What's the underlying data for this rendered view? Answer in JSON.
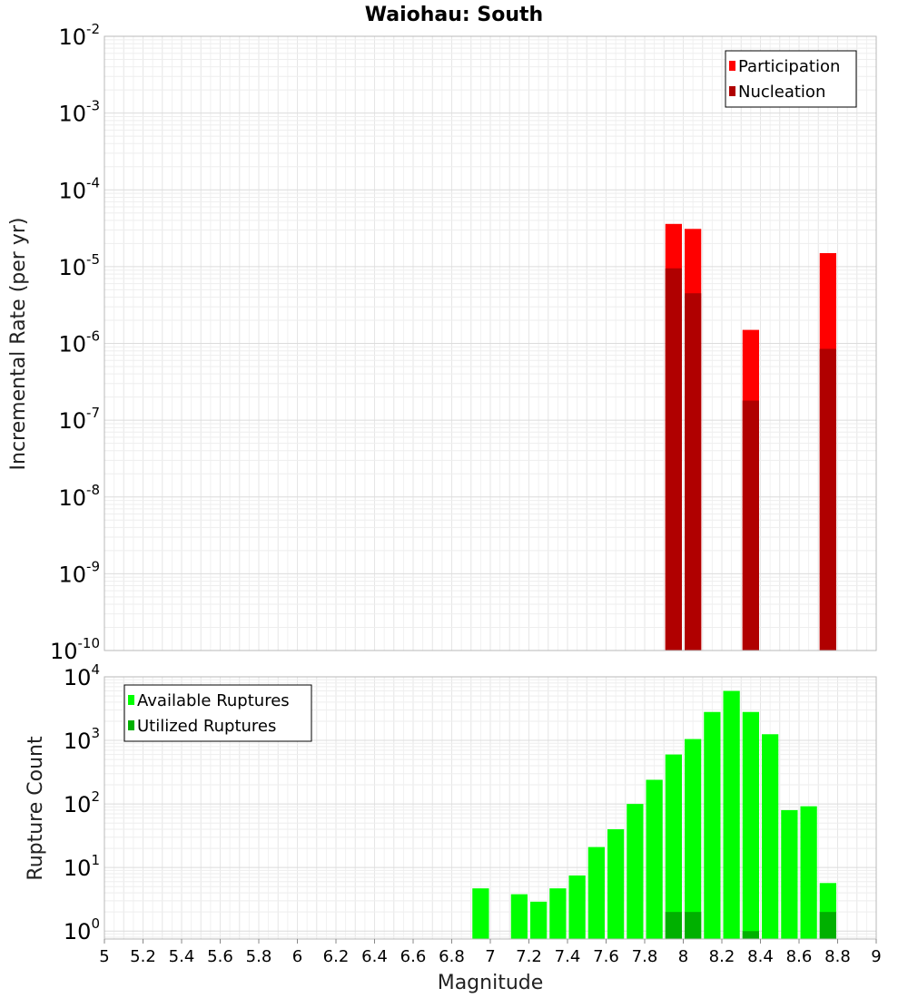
{
  "chart_data": [
    {
      "type": "bar",
      "title": "Waiohau: South",
      "xlabel": "",
      "ylabel": "Incremental Rate (per yr)",
      "xlim": [
        5,
        9
      ],
      "ylim": [
        1e-10,
        0.01
      ],
      "yscale": "log",
      "ytick_exponents": [
        "-10",
        "-9",
        "-8",
        "-7",
        "-6",
        "-5",
        "-4",
        "-3",
        "-2"
      ],
      "ytick_base": "10",
      "grid": true,
      "legend": {
        "position": "top-right"
      },
      "bin_width": 0.1,
      "x": [
        7.95,
        8.05,
        8.35,
        8.75
      ],
      "series": [
        {
          "name": "Participation",
          "color": "#ff0000",
          "values": [
            3.6e-05,
            3.1e-05,
            1.5e-06,
            1.5e-05
          ]
        },
        {
          "name": "Nucleation",
          "color": "#b00000",
          "values": [
            9.5e-06,
            4.5e-06,
            1.8e-07,
            8.5e-07
          ]
        }
      ]
    },
    {
      "type": "bar",
      "title": "",
      "xlabel": "Magnitude",
      "ylabel": "Rupture Count",
      "xlim": [
        5,
        9
      ],
      "ylim": [
        0.75,
        10000
      ],
      "yscale": "log",
      "ytick_exponents": [
        "0",
        "1",
        "2",
        "3",
        "4"
      ],
      "ytick_base": "10",
      "xticks": [
        "5",
        "5.2",
        "5.4",
        "5.6",
        "5.8",
        "6",
        "6.2",
        "6.4",
        "6.6",
        "6.8",
        "7",
        "7.2",
        "7.4",
        "7.6",
        "7.8",
        "8",
        "8.2",
        "8.4",
        "8.6",
        "8.8",
        "9"
      ],
      "grid": true,
      "legend": {
        "position": "top-left"
      },
      "bin_width": 0.1,
      "series": [
        {
          "name": "Available Ruptures",
          "color": "#00ff00",
          "x": [
            6.95,
            7.15,
            7.25,
            7.35,
            7.45,
            7.55,
            7.65,
            7.75,
            7.85,
            7.95,
            8.05,
            8.15,
            8.25,
            8.35,
            8.45,
            8.55,
            8.65,
            8.75
          ],
          "values": [
            4.7,
            3.8,
            2.9,
            4.7,
            7.5,
            21,
            40,
            100,
            240,
            600,
            1050,
            2800,
            6000,
            2800,
            1250,
            80,
            92,
            5.7
          ]
        },
        {
          "name": "Utilized Ruptures",
          "color": "#00b000",
          "x": [
            7.95,
            8.05,
            8.35,
            8.75
          ],
          "values": [
            2,
            2,
            1,
            2
          ]
        }
      ]
    }
  ]
}
